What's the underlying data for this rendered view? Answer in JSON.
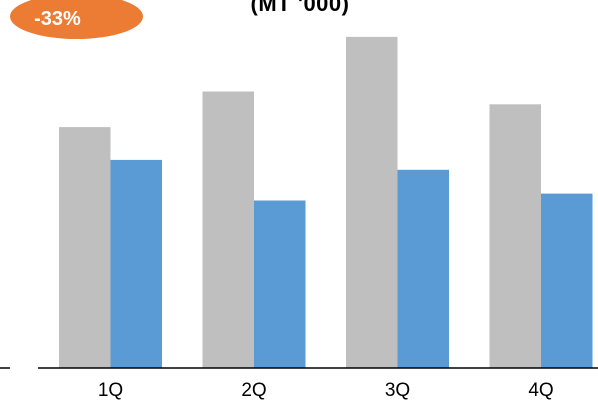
{
  "badge": {
    "text": "-33%",
    "color": "#ec7b34"
  },
  "chart_data": {
    "type": "bar",
    "title": "(MT '000)",
    "xlabel": "",
    "ylabel": "",
    "categories": [
      "1Q",
      "2Q",
      "3Q",
      "4Q"
    ],
    "series": [
      {
        "color": "#bfbfbf",
        "values": [
          243,
          279,
          334,
          266
        ]
      },
      {
        "color": "#5b9bd5",
        "values": [
          210,
          169,
          200,
          176
        ]
      }
    ],
    "ylim": [
      0,
      340
    ],
    "grid": false,
    "legend": "none"
  }
}
